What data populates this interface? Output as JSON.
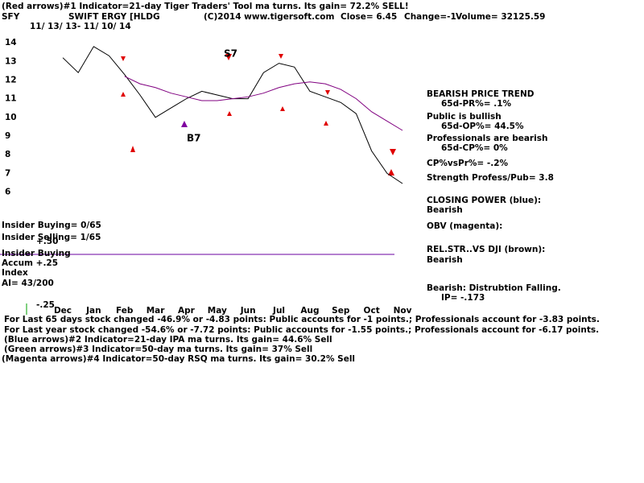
{
  "chart_data": {
    "type": "line",
    "title": "(Red arrows)#1 Indicator=21-day Tiger Traders' Tool ma turns. Its gain= 72.2% SELL!",
    "header": [
      "SFY",
      "SWIFT ERGY [HLDG",
      "(C)2014 www.tigersoft.com",
      "Close=  6.45",
      "Change=-1",
      "Volume= 32125.59"
    ],
    "date_range": "11/ 13/ 13-  11/ 10/ 14",
    "categories": [
      "Dec",
      null,
      "Jan",
      null,
      "Feb",
      null,
      "Mar",
      null,
      "Apr",
      null,
      "May",
      null,
      "Jun",
      null,
      "Jul",
      null,
      "Aug",
      null,
      "Sep",
      null,
      "Oct",
      null,
      "Nov"
    ],
    "series": [
      {
        "color": "#000000",
        "values": [
          13.2,
          12.4,
          13.8,
          13.3,
          12.3,
          11.2,
          10.0,
          10.5,
          11.0,
          11.4,
          11.2,
          11.0,
          11.0,
          12.4,
          12.9,
          12.7,
          11.4,
          11.1,
          10.8,
          10.2,
          8.2,
          7.0,
          6.45
        ]
      },
      {
        "color": "#800080",
        "values": [
          null,
          null,
          null,
          null,
          12.2,
          11.8,
          11.6,
          11.3,
          11.1,
          10.9,
          10.9,
          11.0,
          11.1,
          11.3,
          11.6,
          11.8,
          11.9,
          11.8,
          11.5,
          11.0,
          10.3,
          9.8,
          9.3
        ]
      }
    ],
    "ylim": [
      5.5,
      15
    ],
    "yticks": [
      6,
      7,
      8,
      9,
      10,
      11,
      12,
      13,
      14
    ],
    "annotations": [
      "S7",
      "B7"
    ],
    "info_panel": [
      "BEARISH PRICE TREND",
      "65d-PR%= .1%",
      "Public is bullish",
      "65d-OP%= 44.5%",
      "Professionals are bearish",
      "65d-CP%= 0%",
      "CP%vsPr%= -.2%",
      "Strength Profess/Pub= 3.8",
      "CLOSING POWER (blue):",
      "Bearish",
      "OBV (magenta):",
      "REL.STR..VS DJI (brown):",
      "Bearish",
      "Bearish:  Distrubtion Falling.",
      "IP= -.173"
    ],
    "left_labels": [
      "Insider Buying= 0/65",
      "Insider Selling= 1/65",
      "+.50",
      "Insider Buying",
      "Accum  +.25",
      "Index",
      "AI= 43/200",
      "-.25"
    ],
    "footer": [
      "For Last 65 days stock changed -46.9% or -4.83 points:  Public accounts for -1 points.;  Professionals account for -3.83 points.",
      "For Last year stock changed -54.6% or -7.72 points:  Public accounts for -1.55 points.;  Professionals account for -6.17 points.",
      "(Blue arrows)#2 Indicator=21-day IPA ma turns. Its gain= 44.6% Sell",
      "(Green arrows)#3 Indicator=50-day ma turns. Its gain= 37% Sell",
      "(Magenta arrows)#4 Indicator=50-day RSQ ma turns. Its gain= 30.2% Sell"
    ]
  }
}
